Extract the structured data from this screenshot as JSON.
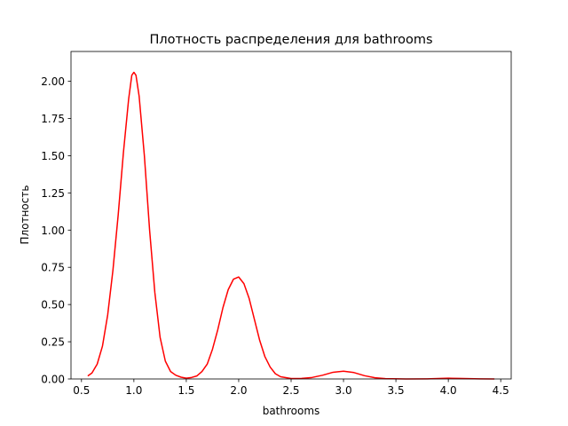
{
  "chart_data": {
    "type": "line",
    "title": "Плотность распределения для bathrooms",
    "xlabel": "bathrooms",
    "ylabel": "Плотность",
    "xlim": [
      0.4,
      4.6
    ],
    "ylim": [
      0.0,
      2.2
    ],
    "xticks": [
      0.5,
      1.0,
      1.5,
      2.0,
      2.5,
      3.0,
      3.5,
      4.0,
      4.5
    ],
    "xtick_labels": [
      "0.5",
      "1.0",
      "1.5",
      "2.0",
      "2.5",
      "3.0",
      "3.5",
      "4.0",
      "4.5"
    ],
    "yticks": [
      0.0,
      0.25,
      0.5,
      0.75,
      1.0,
      1.25,
      1.5,
      1.75,
      2.0
    ],
    "ytick_labels": [
      "0.00",
      "0.25",
      "0.50",
      "0.75",
      "1.00",
      "1.25",
      "1.50",
      "1.75",
      "2.00"
    ],
    "grid": false,
    "series": [
      {
        "color": "#ff0000",
        "points": [
          [
            0.56,
            0.02
          ],
          [
            0.6,
            0.04
          ],
          [
            0.65,
            0.1
          ],
          [
            0.7,
            0.22
          ],
          [
            0.75,
            0.43
          ],
          [
            0.8,
            0.73
          ],
          [
            0.85,
            1.1
          ],
          [
            0.9,
            1.52
          ],
          [
            0.95,
            1.88
          ],
          [
            0.98,
            2.04
          ],
          [
            1.0,
            2.06
          ],
          [
            1.02,
            2.04
          ],
          [
            1.05,
            1.9
          ],
          [
            1.1,
            1.5
          ],
          [
            1.15,
            1.0
          ],
          [
            1.2,
            0.58
          ],
          [
            1.25,
            0.28
          ],
          [
            1.3,
            0.12
          ],
          [
            1.35,
            0.05
          ],
          [
            1.4,
            0.025
          ],
          [
            1.45,
            0.012
          ],
          [
            1.5,
            0.005
          ],
          [
            1.55,
            0.01
          ],
          [
            1.6,
            0.02
          ],
          [
            1.65,
            0.05
          ],
          [
            1.7,
            0.1
          ],
          [
            1.75,
            0.2
          ],
          [
            1.8,
            0.33
          ],
          [
            1.85,
            0.48
          ],
          [
            1.9,
            0.6
          ],
          [
            1.95,
            0.67
          ],
          [
            2.0,
            0.685
          ],
          [
            2.05,
            0.64
          ],
          [
            2.1,
            0.54
          ],
          [
            2.15,
            0.4
          ],
          [
            2.2,
            0.26
          ],
          [
            2.25,
            0.15
          ],
          [
            2.3,
            0.08
          ],
          [
            2.35,
            0.035
          ],
          [
            2.4,
            0.015
          ],
          [
            2.5,
            0.003
          ],
          [
            2.6,
            0.004
          ],
          [
            2.7,
            0.01
          ],
          [
            2.8,
            0.025
          ],
          [
            2.9,
            0.045
          ],
          [
            3.0,
            0.052
          ],
          [
            3.1,
            0.043
          ],
          [
            3.2,
            0.022
          ],
          [
            3.3,
            0.008
          ],
          [
            3.4,
            0.002
          ],
          [
            3.6,
            0.0
          ],
          [
            3.8,
            0.001
          ],
          [
            3.9,
            0.003
          ],
          [
            4.0,
            0.005
          ],
          [
            4.1,
            0.004
          ],
          [
            4.2,
            0.002
          ],
          [
            4.3,
            0.001
          ],
          [
            4.44,
            0.0
          ]
        ]
      }
    ]
  }
}
